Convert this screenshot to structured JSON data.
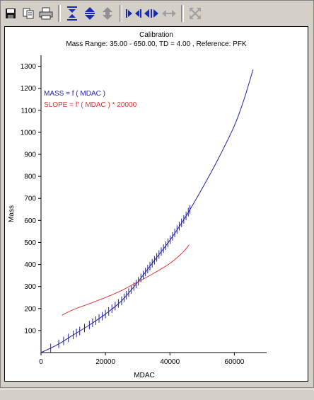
{
  "toolbar": {
    "buttons": [
      {
        "name": "save-icon",
        "group": 1
      },
      {
        "name": "copy-icon",
        "group": 1
      },
      {
        "name": "print-icon",
        "group": 1
      },
      {
        "name": "zoom-y-out-icon",
        "group": 2
      },
      {
        "name": "zoom-y-in-icon",
        "group": 2
      },
      {
        "name": "scroll-y-icon",
        "group": 2
      },
      {
        "name": "zoom-x-in-icon",
        "group": 3
      },
      {
        "name": "zoom-x-out-icon",
        "group": 3
      },
      {
        "name": "scroll-x-icon",
        "group": 3
      },
      {
        "name": "fit-all-icon",
        "group": 4
      }
    ]
  },
  "chart_data": {
    "type": "line",
    "title": "Calibration",
    "subtitle": "Mass Range: 35.00 - 650.00, TD = 4.00 , Reference: PFK",
    "xlabel": "MDAC",
    "ylabel": "Mass",
    "xlim": [
      0,
      70000
    ],
    "ylim": [
      0,
      1350
    ],
    "xticks": [
      0,
      20000,
      40000,
      60000
    ],
    "yticks": [
      100,
      200,
      300,
      400,
      500,
      600,
      700,
      800,
      900,
      1000,
      1100,
      1200,
      1300
    ],
    "grid": false,
    "legend": "top-left",
    "series": [
      {
        "name": "MASS = f ( MDAC )",
        "color": "#1f1fa6",
        "points": [
          [
            0,
            0
          ],
          [
            5000,
            35
          ],
          [
            10000,
            80
          ],
          [
            15000,
            125
          ],
          [
            20000,
            175
          ],
          [
            25000,
            235
          ],
          [
            30000,
            320
          ],
          [
            35000,
            415
          ],
          [
            40000,
            510
          ],
          [
            45000,
            620
          ],
          [
            50000,
            745
          ],
          [
            55000,
            880
          ],
          [
            60000,
            1030
          ],
          [
            63000,
            1150
          ],
          [
            65800,
            1285
          ]
        ],
        "marker_x": [
          3000,
          5500,
          7000,
          8500,
          10000,
          11000,
          12000,
          13500,
          15000,
          16000,
          17000,
          18000,
          19000,
          20000,
          21000,
          22000,
          23000,
          24000,
          25000,
          25800,
          26500,
          27200,
          28000,
          28800,
          29500,
          30200,
          31000,
          31700,
          32400,
          33100,
          33800,
          34500,
          35200,
          35900,
          36600,
          37300,
          38000,
          38700,
          39400,
          40100,
          40800,
          41500,
          42200,
          42900,
          43600,
          44300,
          45000,
          45700,
          46200
        ]
      },
      {
        "name": "SLOPE = f' ( MDAC ) * 20000",
        "color": "#e03030",
        "points": [
          [
            6500,
            170
          ],
          [
            10000,
            195
          ],
          [
            15000,
            222
          ],
          [
            20000,
            250
          ],
          [
            25000,
            282
          ],
          [
            30000,
            320
          ],
          [
            35000,
            360
          ],
          [
            40000,
            405
          ],
          [
            44000,
            455
          ],
          [
            46000,
            490
          ]
        ]
      }
    ]
  }
}
